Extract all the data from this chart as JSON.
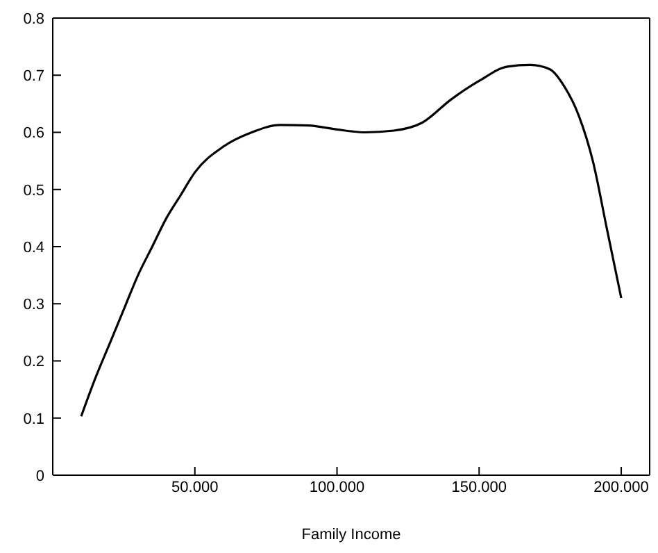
{
  "chart_data": {
    "type": "line",
    "xlabel": "Family Income",
    "x": [
      10,
      15,
      20,
      25,
      30,
      35,
      40,
      45,
      50,
      60,
      70,
      80,
      90,
      100,
      110,
      120,
      130,
      140,
      150,
      160,
      168,
      175,
      180,
      185,
      190,
      195,
      200
    ],
    "series": [
      {
        "color": "#000000",
        "values": [
          0.103,
          0.17,
          0.23,
          0.29,
          0.35,
          0.4,
          0.45,
          0.49,
          0.53,
          0.575,
          0.6,
          0.613,
          0.612,
          0.605,
          0.6,
          0.603,
          0.617,
          0.657,
          0.69,
          0.715,
          0.718,
          0.71,
          0.68,
          0.63,
          0.55,
          0.43,
          0.31
        ]
      }
    ],
    "xlim": [
      0,
      210
    ],
    "xticks": [
      {
        "value": 50,
        "label": "50.000"
      },
      {
        "value": 100,
        "label": "100.000"
      },
      {
        "value": 150,
        "label": "150.000"
      },
      {
        "value": 200,
        "label": "200.000"
      }
    ],
    "ylim": [
      0,
      0.8
    ],
    "yticks": [
      0,
      0.1,
      0.2,
      0.3,
      0.4,
      0.5,
      0.6,
      0.7,
      0.8
    ],
    "grid": false,
    "legend": false,
    "marker": "none",
    "line_style": "solid"
  }
}
